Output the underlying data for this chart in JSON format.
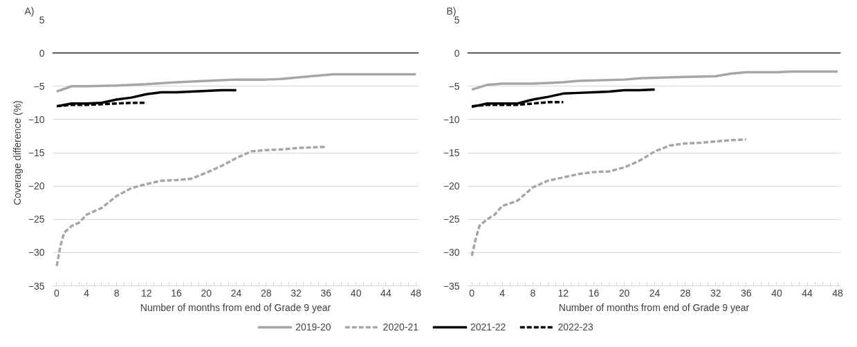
{
  "chart_data": [
    {
      "type": "line",
      "title": "A)",
      "xlabel": "Number of months from end of Grade 9 year",
      "ylabel": "Coverage difference (%)",
      "xlim": [
        -0.6,
        48.4
      ],
      "ylim": [
        -35,
        5
      ],
      "xticks": [
        0,
        4,
        8,
        12,
        16,
        20,
        24,
        28,
        32,
        36,
        40,
        44,
        48
      ],
      "yticks": [
        -35,
        -30,
        -25,
        -20,
        -15,
        -10,
        -5,
        0,
        5
      ],
      "grid": "y",
      "legend": "bottom",
      "marker": "none",
      "ref_lines": [
        {
          "axis": "y",
          "value": 0,
          "color": "#000000"
        }
      ],
      "series": [
        {
          "name": "2019-20",
          "color": "#a6a6a6",
          "line_style": "solid",
          "x": [
            0,
            2,
            4,
            8,
            12,
            16,
            20,
            24,
            28,
            30,
            34,
            37,
            48
          ],
          "values": [
            -5.8,
            -5.0,
            -5.0,
            -4.9,
            -4.7,
            -4.4,
            -4.2,
            -4.0,
            -4.0,
            -3.9,
            -3.5,
            -3.2,
            -3.2
          ]
        },
        {
          "name": "2020-21",
          "color": "#a6a6a6",
          "line_style": "dashed",
          "x": [
            0,
            0.5,
            1,
            2,
            3,
            4,
            6,
            8,
            10,
            12,
            14,
            16,
            18,
            20,
            22,
            24,
            26,
            28,
            30,
            32,
            36
          ],
          "values": [
            -32,
            -29,
            -27,
            -26,
            -25.5,
            -24.3,
            -23.3,
            -21.5,
            -20.3,
            -19.7,
            -19.2,
            -19.1,
            -18.9,
            -18.0,
            -17.0,
            -15.8,
            -14.8,
            -14.6,
            -14.5,
            -14.3,
            -14.1
          ]
        },
        {
          "name": "2021-22",
          "color": "#000000",
          "line_style": "solid",
          "x": [
            0,
            2,
            4,
            6,
            8,
            10,
            12,
            14,
            16,
            18,
            20,
            22,
            24
          ],
          "values": [
            -8.0,
            -7.6,
            -7.6,
            -7.5,
            -7.0,
            -6.7,
            -6.2,
            -5.9,
            -5.9,
            -5.8,
            -5.7,
            -5.6,
            -5.6
          ]
        },
        {
          "name": "2022-23",
          "color": "#000000",
          "line_style": "dashed",
          "x": [
            0,
            2,
            4,
            6,
            8,
            10,
            12
          ],
          "values": [
            -8.0,
            -7.8,
            -7.8,
            -7.7,
            -7.6,
            -7.5,
            -7.5
          ]
        }
      ]
    },
    {
      "type": "line",
      "title": "B)",
      "xlabel": "Number of months from end of Grade 9 year",
      "xlim": [
        -0.6,
        48.4
      ],
      "ylim": [
        -35,
        5
      ],
      "xticks": [
        0,
        4,
        8,
        12,
        16,
        20,
        24,
        28,
        32,
        36,
        40,
        44,
        48
      ],
      "yticks": [
        -35,
        -30,
        -25,
        -20,
        -15,
        -10,
        -5,
        0,
        5
      ],
      "grid": "y",
      "marker": "none",
      "ref_lines": [
        {
          "axis": "y",
          "value": 0,
          "color": "#000000"
        }
      ],
      "series": [
        {
          "color": "#a6a6a6",
          "line_style": "solid",
          "x": [
            0,
            2,
            4,
            8,
            12,
            14,
            20,
            22,
            28,
            32,
            34,
            36,
            40,
            42,
            48
          ],
          "values": [
            -5.5,
            -4.8,
            -4.6,
            -4.6,
            -4.4,
            -4.2,
            -4.0,
            -3.8,
            -3.6,
            -3.5,
            -3.1,
            -2.9,
            -2.9,
            -2.8,
            -2.8
          ]
        },
        {
          "color": "#a6a6a6",
          "line_style": "dashed",
          "x": [
            0,
            0.5,
            1,
            2,
            3,
            4,
            6,
            8,
            10,
            12,
            14,
            16,
            18,
            20,
            22,
            24,
            26,
            28,
            30,
            32,
            34,
            36
          ],
          "values": [
            -30.5,
            -28,
            -26,
            -25,
            -24.3,
            -23,
            -22.2,
            -20.2,
            -19.2,
            -18.7,
            -18.2,
            -17.9,
            -17.8,
            -17.2,
            -16.2,
            -14.8,
            -13.9,
            -13.6,
            -13.5,
            -13.3,
            -13.1,
            -13.0
          ]
        },
        {
          "color": "#000000",
          "line_style": "solid",
          "x": [
            0,
            2,
            4,
            6,
            8,
            10,
            12,
            14,
            16,
            18,
            20,
            22,
            24
          ],
          "values": [
            -8.1,
            -7.6,
            -7.6,
            -7.6,
            -7.0,
            -6.6,
            -6.1,
            -6.0,
            -5.9,
            -5.8,
            -5.6,
            -5.6,
            -5.5
          ]
        },
        {
          "color": "#000000",
          "line_style": "dashed",
          "x": [
            0,
            2,
            4,
            6,
            8,
            10,
            12
          ],
          "values": [
            -8.0,
            -7.8,
            -7.8,
            -7.8,
            -7.6,
            -7.4,
            -7.4
          ]
        }
      ]
    }
  ]
}
